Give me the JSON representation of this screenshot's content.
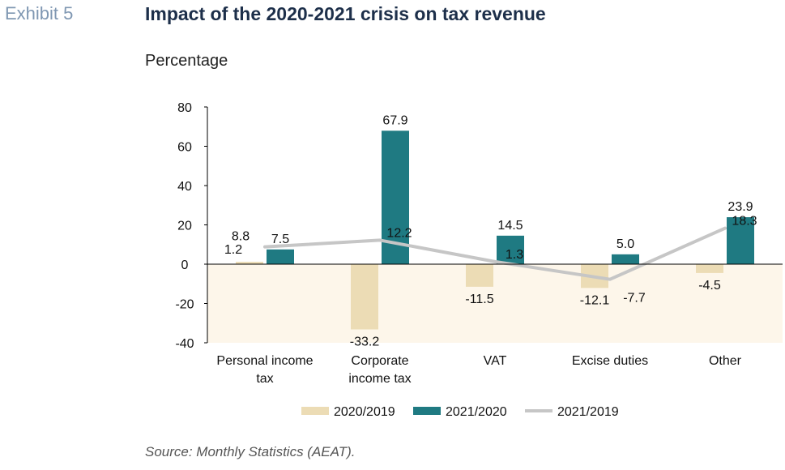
{
  "header": {
    "exhibit_label": "Exhibit 5",
    "title": "Impact of the 2020-2021 crisis on tax revenue",
    "subtitle": "Percentage"
  },
  "footer": {
    "source": "Source: Monthly Statistics (AEAT)."
  },
  "colors": {
    "bar_2020_2019": "#ecdcb5",
    "bar_2021_2020": "#1f7a82",
    "line_2021_2019": "#c6c6c6",
    "negative_band": "#fdf6ea",
    "axis": "#000000",
    "text": "#111111"
  },
  "chart_data": {
    "type": "bar",
    "title": "Impact of the 2020-2021 crisis on tax revenue",
    "ylabel": "Percentage",
    "xlabel": "",
    "ylim": [
      -40,
      80
    ],
    "yticks": [
      80,
      60,
      40,
      20,
      0,
      -20,
      -40
    ],
    "categories": [
      [
        "Personal income",
        "tax"
      ],
      [
        "Corporate",
        "income tax"
      ],
      [
        "VAT"
      ],
      [
        "Excise duties"
      ],
      [
        "Other"
      ]
    ],
    "series": [
      {
        "name": "2020/2019",
        "type": "bar",
        "values": [
          1.2,
          -33.2,
          -11.5,
          -12.1,
          -4.5
        ]
      },
      {
        "name": "2021/2020",
        "type": "bar",
        "values": [
          7.5,
          67.9,
          14.5,
          5.0,
          23.9
        ]
      },
      {
        "name": "2021/2019",
        "type": "line",
        "values": [
          8.8,
          12.2,
          1.3,
          -7.7,
          18.3
        ]
      }
    ],
    "data_labels": {
      "2020/2019": [
        "1.2",
        "-33.2",
        "-11.5",
        "-12.1",
        "-4.5"
      ],
      "2021/2020": [
        "7.5",
        "67.9",
        "14.5",
        "5.0",
        "23.9"
      ],
      "2021/2019": [
        "8.8",
        "12.2",
        "1.3",
        "-7.7",
        "18.3"
      ]
    },
    "legend": {
      "position": "bottom",
      "entries": [
        "2020/2019",
        "2021/2020",
        "2021/2019"
      ]
    },
    "grid": false
  }
}
